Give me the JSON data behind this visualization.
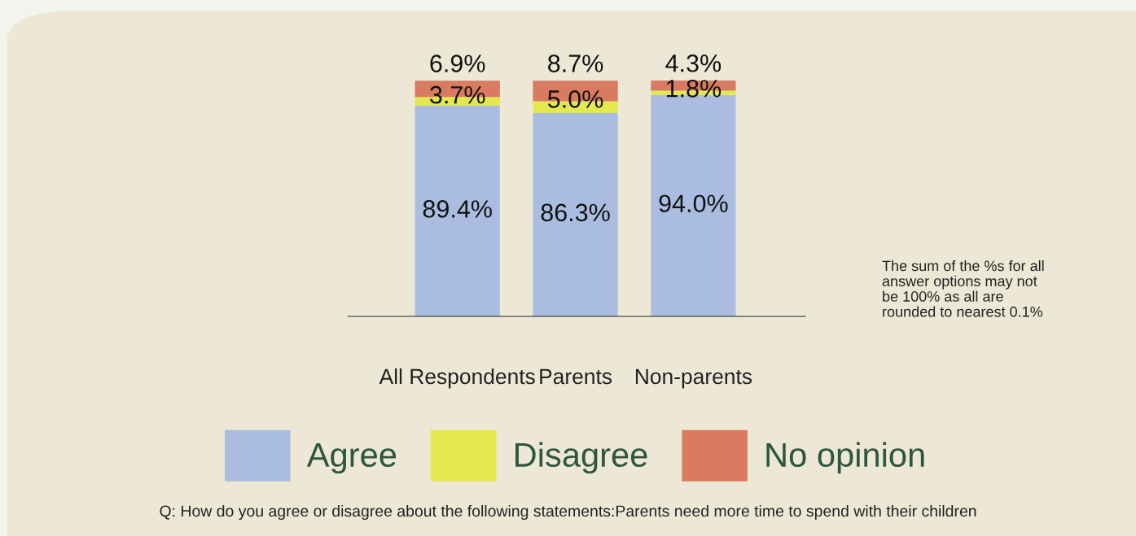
{
  "chart_data": {
    "type": "bar",
    "stacked": true,
    "categories": [
      "All Respondents",
      "Parents",
      "Non-parents"
    ],
    "series": [
      {
        "name": "Agree",
        "color": "#aabde0",
        "values": [
          89.4,
          86.3,
          94.0
        ],
        "value_labels": [
          "89.4%",
          "86.3%",
          "94.0%"
        ]
      },
      {
        "name": "Disagree",
        "color": "#e3e84e",
        "values": [
          3.7,
          5.0,
          1.8
        ],
        "value_labels": [
          "3.7%",
          "5.0%",
          "1.8%"
        ]
      },
      {
        "name": "No opinion",
        "color": "#d97b60",
        "values": [
          6.9,
          8.7,
          4.3
        ],
        "value_labels": [
          "6.9%",
          "8.7%",
          "4.3%"
        ]
      }
    ],
    "legend": "bottom",
    "annotations": [
      "The sum of the %s for all answer options may not be 100% as all are rounded to nearest 0.1%",
      "Q: How do you agree or disagree about the following statements:Parents need more time to spend with their children"
    ]
  }
}
